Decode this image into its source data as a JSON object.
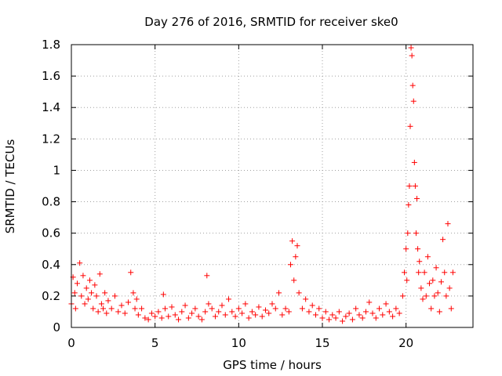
{
  "chart_data": {
    "type": "scatter",
    "title": "Day 276 of 2016, SRMTID for receiver ske0",
    "xlabel": "GPS time / hours",
    "ylabel": "SRMTID / TECUs",
    "xlim": [
      0,
      24
    ],
    "ylim": [
      0,
      1.8
    ],
    "xticks": [
      "0",
      "5",
      "10",
      "15",
      "20"
    ],
    "xtick_values": [
      0,
      5,
      10,
      15,
      20
    ],
    "yticks": [
      "0",
      "0.2",
      "0.4",
      "0.6",
      "0.8",
      "1",
      "1.2",
      "1.4",
      "1.6",
      "1.8"
    ],
    "ytick_values": [
      0,
      0.2,
      0.4,
      0.6,
      0.8,
      1.0,
      1.2,
      1.4,
      1.6,
      1.8
    ],
    "grid": true,
    "marker": "+",
    "color": "#ff0000",
    "series": [
      {
        "name": "SRMTID",
        "x": [
          0.0,
          0.1,
          0.2,
          0.25,
          0.35,
          0.5,
          0.6,
          0.7,
          0.8,
          0.9,
          1.0,
          1.1,
          1.2,
          1.3,
          1.4,
          1.5,
          1.6,
          1.7,
          1.8,
          1.9,
          2.0,
          2.1,
          2.2,
          2.4,
          2.6,
          2.8,
          3.0,
          3.2,
          3.4,
          3.55,
          3.7,
          3.8,
          3.9,
          4.0,
          4.2,
          4.4,
          4.6,
          4.8,
          5.0,
          5.2,
          5.4,
          5.5,
          5.6,
          5.8,
          6.0,
          6.2,
          6.4,
          6.6,
          6.8,
          7.0,
          7.2,
          7.4,
          7.6,
          7.8,
          8.0,
          8.1,
          8.2,
          8.4,
          8.6,
          8.8,
          9.0,
          9.2,
          9.4,
          9.6,
          9.8,
          10.0,
          10.2,
          10.4,
          10.6,
          10.8,
          11.0,
          11.2,
          11.4,
          11.6,
          11.8,
          12.0,
          12.2,
          12.4,
          12.6,
          12.8,
          13.0,
          13.1,
          13.2,
          13.3,
          13.4,
          13.5,
          13.6,
          13.8,
          14.0,
          14.2,
          14.4,
          14.6,
          14.8,
          15.0,
          15.2,
          15.4,
          15.6,
          15.8,
          16.0,
          16.2,
          16.4,
          16.6,
          16.8,
          17.0,
          17.2,
          17.4,
          17.6,
          17.8,
          18.0,
          18.2,
          18.4,
          18.6,
          18.8,
          19.0,
          19.2,
          19.4,
          19.6,
          19.8,
          19.9,
          20.0,
          20.05,
          20.1,
          20.15,
          20.2,
          20.25,
          20.3,
          20.35,
          20.4,
          20.45,
          20.5,
          20.55,
          20.6,
          20.65,
          20.7,
          20.75,
          20.8,
          20.9,
          21.0,
          21.1,
          21.2,
          21.3,
          21.4,
          21.5,
          21.6,
          21.7,
          21.8,
          21.9,
          22.0,
          22.1,
          22.2,
          22.3,
          22.4,
          22.5,
          22.6,
          22.7,
          22.8
        ],
        "y": [
          0.15,
          0.32,
          0.22,
          0.12,
          0.28,
          0.41,
          0.2,
          0.33,
          0.15,
          0.25,
          0.18,
          0.3,
          0.22,
          0.12,
          0.27,
          0.2,
          0.1,
          0.34,
          0.15,
          0.12,
          0.22,
          0.09,
          0.17,
          0.12,
          0.2,
          0.1,
          0.14,
          0.09,
          0.16,
          0.35,
          0.22,
          0.12,
          0.18,
          0.08,
          0.12,
          0.06,
          0.05,
          0.09,
          0.07,
          0.1,
          0.06,
          0.21,
          0.12,
          0.07,
          0.13,
          0.08,
          0.05,
          0.1,
          0.14,
          0.06,
          0.09,
          0.12,
          0.07,
          0.05,
          0.1,
          0.33,
          0.15,
          0.12,
          0.07,
          0.1,
          0.14,
          0.08,
          0.18,
          0.1,
          0.07,
          0.12,
          0.09,
          0.15,
          0.06,
          0.1,
          0.08,
          0.13,
          0.07,
          0.11,
          0.09,
          0.15,
          0.12,
          0.22,
          0.08,
          0.12,
          0.1,
          0.4,
          0.55,
          0.3,
          0.45,
          0.52,
          0.22,
          0.12,
          0.18,
          0.1,
          0.14,
          0.08,
          0.12,
          0.06,
          0.1,
          0.05,
          0.08,
          0.06,
          0.1,
          0.04,
          0.07,
          0.09,
          0.05,
          0.12,
          0.08,
          0.06,
          0.1,
          0.16,
          0.09,
          0.06,
          0.12,
          0.08,
          0.15,
          0.1,
          0.07,
          0.12,
          0.09,
          0.2,
          0.35,
          0.5,
          0.3,
          0.6,
          0.78,
          0.9,
          1.28,
          1.78,
          1.73,
          1.54,
          1.44,
          1.05,
          0.9,
          0.6,
          0.82,
          0.5,
          0.35,
          0.42,
          0.25,
          0.18,
          0.35,
          0.2,
          0.45,
          0.28,
          0.12,
          0.3,
          0.2,
          0.38,
          0.22,
          0.1,
          0.29,
          0.56,
          0.35,
          0.2,
          0.66,
          0.25,
          0.12,
          0.35
        ]
      }
    ]
  }
}
